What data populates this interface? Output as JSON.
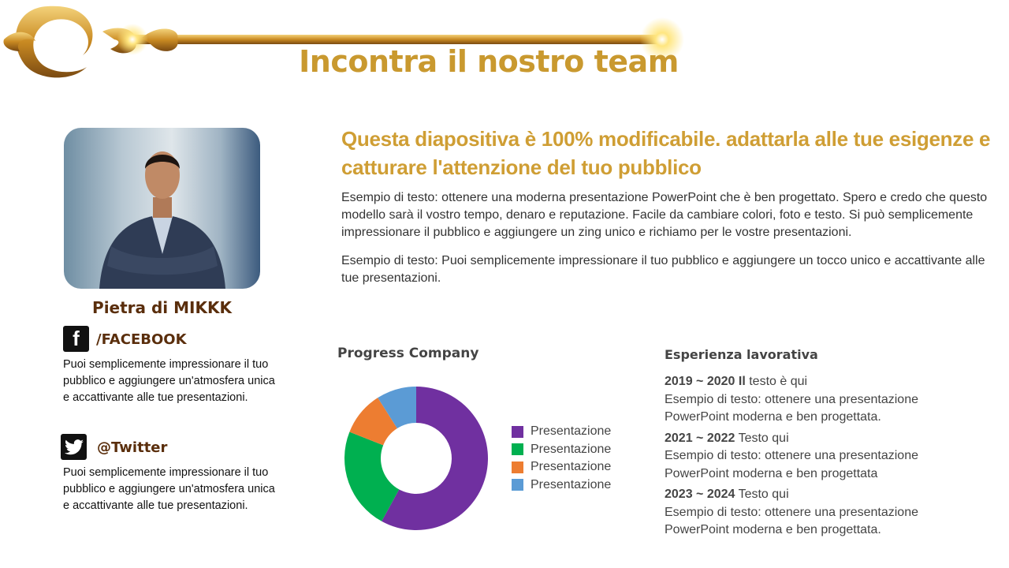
{
  "title": "Incontra il nostro team",
  "headline": "Questa diapositiva è 100% modificabile. adattarla alle tue esigenze e catturare l'attenzione del tuo pubblico",
  "intro": "Esempio di testo: ottenere una moderna presentazione PowerPoint che è ben progettato. Spero e credo che questo modello sarà il vostro tempo, denaro e reputazione. Facile da cambiare colori, foto e testo. Si può semplicemente impressionare il pubblico e aggiungere un zing unico e richiamo per le vostre presentazioni.",
  "intro2": "Esempio di testo: Puoi semplicemente impressionare il  tuo pubblico e aggiungere un tocco unico e accattivante alle tue presentazioni.",
  "member": {
    "name": "Pietra di MIKKK"
  },
  "social": [
    {
      "icon": "facebook-icon",
      "label": "/FACEBOOK",
      "text": "Puoi semplicemente  impressionare il tuo pubblico e aggiungere un'atmosfera unica e accattivante alle tue presentazioni."
    },
    {
      "icon": "twitter-icon",
      "label": "@Twitter",
      "text": "Puoi semplicemente  impressionare il tuo pubblico e aggiungere un'atmosfera unica e accattivante alle tue presentazioni."
    }
  ],
  "chart_data": {
    "type": "pie",
    "variant": "donut",
    "title": "Progress  Company",
    "categories": [
      "Presentazione",
      "Presentazione",
      "Presentazione",
      "Presentazione"
    ],
    "values": [
      58,
      23,
      10,
      9
    ],
    "colors": [
      "#7030a0",
      "#00b050",
      "#ed7d31",
      "#5b9bd5"
    ],
    "legend": "right"
  },
  "experience": {
    "title": "Esperienza lavorativa",
    "items": [
      {
        "years": "2019 ~ 2020 Il",
        "heading": "testo è qui",
        "text": "Esempio di testo: ottenere una presentazione PowerPoint moderna e ben progettata."
      },
      {
        "years": "2021 ~ 2022",
        "heading": "Testo qui",
        "text": "Esempio di testo: ottenere una presentazione PowerPoint moderna e ben progettata"
      },
      {
        "years": "2023 ~ 2024",
        "heading": "Testo qui",
        "text": "Esempio di testo: ottenere una presentazione PowerPoint moderna e ben progettata."
      }
    ]
  }
}
